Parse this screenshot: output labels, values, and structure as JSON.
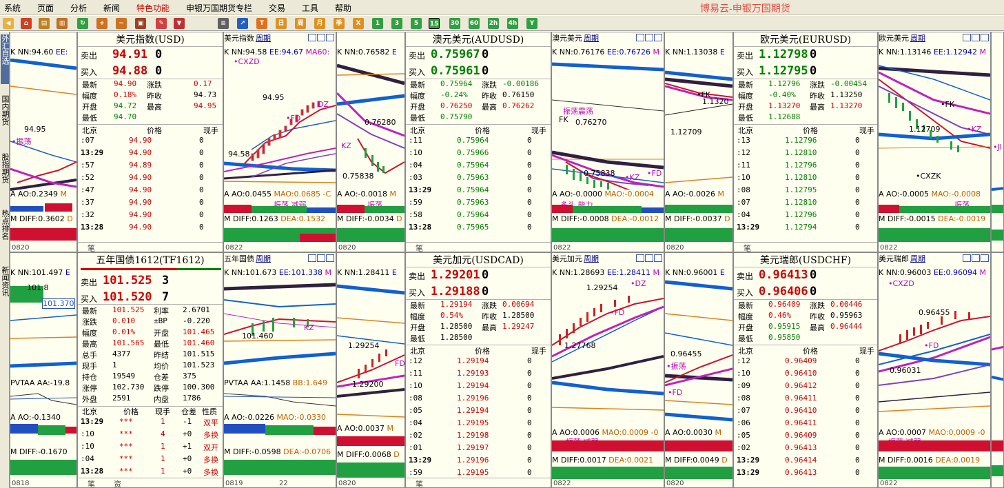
{
  "menu": [
    "系统",
    "页面",
    "分析",
    "新闻",
    "特色功能",
    "申银万国期货专栏",
    "交易",
    "工具",
    "帮助"
  ],
  "app_title": "博易云-申银万国期货",
  "toolbar": {
    "tf_1": "1",
    "tf_3": "3",
    "tf_5": "5",
    "tf_15": "15",
    "tf_30": "30",
    "tf_60": "60"
  },
  "side_tabs": [
    "外汇自选",
    "国内期货",
    "股指期货",
    "热点排名",
    "新闻资讯"
  ],
  "colors": {
    "up": "#d00000",
    "down": "#008000",
    "accent": "#e8463c"
  },
  "left1": {
    "k": "K",
    "nn": "NN:94.60",
    "ee": "EE:",
    "price": "94.95",
    "zd": "•振荡",
    "ao": "A AO:0.2349",
    "mao": "M",
    "diff": "M DIFF:0.3602",
    "dea": "D",
    "date": "0820"
  },
  "left2": {
    "k": "K",
    "nn": "NN:101.497",
    "ee": "E",
    "price": "101.8",
    "label": "101.370",
    "pvt": "PVTAA",
    "aa": "AA:-19.8",
    "ao": "A AO:-0.1340",
    "m": "M",
    "diff": "M DIFF:-0.1670",
    "d": "D",
    "date": "0818"
  },
  "usd": {
    "title": "美元指数(USD)",
    "sell_label": "卖出",
    "sell": "94.91",
    "sell_q": "0",
    "buy_label": "买入",
    "buy": "94.88",
    "buy_q": "0",
    "stats": [
      [
        "最新",
        "94.90",
        "涨跌",
        "0.17"
      ],
      [
        "幅度",
        "0.18%",
        "昨收",
        "94.73"
      ],
      [
        "开盘",
        "94.72",
        "最高",
        "94.95"
      ],
      [
        "最低",
        "94.70",
        "",
        ""
      ]
    ],
    "th": [
      "北京",
      "价格",
      "现手"
    ],
    "ticks": [
      [
        ":07",
        "94.90",
        "0"
      ],
      [
        "13:29",
        "94.90",
        "0"
      ],
      [
        ":57",
        "94.89",
        "0"
      ],
      [
        ":52",
        "94.90",
        "0"
      ],
      [
        ":47",
        "94.90",
        "0"
      ],
      [
        ":37",
        "94.90",
        "0"
      ],
      [
        ":32",
        "94.90",
        "0"
      ],
      [
        "13:28",
        "94.90",
        "0"
      ]
    ],
    "foot": "笔"
  },
  "usd_chart": {
    "name": "美元指数",
    "period": "周期",
    "k": "K",
    "nn": "NN:94.58",
    "ee": "EE:94.67",
    "ma": "MA60:",
    "cx": "•CXZD",
    "p1": "94.95",
    "dz": "DZ",
    "fd": "•FD",
    "p2": "94.58",
    "ao": "A AO:0.0455",
    "mao": "MAO:0.0685 -C",
    "zd": "振荡 减弱",
    "diff": "M DIFF:0.1263",
    "dea": "DEA:0.1532",
    "date": "0822"
  },
  "usd_chart2": {
    "k": "K",
    "nn": "NN:0.76582",
    "ee": "E",
    "kz": "KZ",
    "p1": "0.76280",
    "p2": "0.75838",
    "ao": "A AO:-0.0018",
    "m": "M",
    "diff": "M DIFF:-0.0034",
    "d": "D",
    "date": "0820",
    "zd": "振荡"
  },
  "aud": {
    "title": "澳元美元(AUDUSD)",
    "sell_label": "卖出",
    "sell": "0.75967",
    "sell_q": "0",
    "buy_label": "买入",
    "buy": "0.75961",
    "buy_q": "0",
    "stats": [
      [
        "最新",
        "0.75964",
        "涨跌",
        "-0.00186"
      ],
      [
        "幅度",
        "-0.24%",
        "昨收",
        "0.76150"
      ],
      [
        "开盘",
        "0.76250",
        "最高",
        "0.76262"
      ],
      [
        "最低",
        "0.75790",
        "",
        ""
      ]
    ],
    "th": [
      "北京",
      "价格",
      "现手"
    ],
    "ticks": [
      [
        ":11",
        "0.75964",
        "0"
      ],
      [
        ":10",
        "0.75966",
        "0"
      ],
      [
        ":04",
        "0.75964",
        "0"
      ],
      [
        ":03",
        "0.75963",
        "0"
      ],
      [
        "13:29",
        "0.75964",
        "0"
      ],
      [
        ":59",
        "0.75963",
        "0"
      ],
      [
        ":58",
        "0.75964",
        "0"
      ],
      [
        "13:28",
        "0.75965",
        "0"
      ]
    ],
    "foot": "笔"
  },
  "aud_chart": {
    "name": "澳元美元",
    "period": "周期",
    "k": "K",
    "nn": "NN:0.76176",
    "ee": "EE:0.76726",
    "m": "M",
    "zd": "振荡震荡",
    "fk": "FK",
    "p1": "0.76270",
    "p2": "0.75838",
    "kz": "•KZ",
    "fd": "•FD",
    "ao": "A AO:-0.0000",
    "mao": "MAO:-0.0004",
    "s": "多头 能力",
    "diff": "M DIFF:-0.0008",
    "dea": "DEA:-0.0012",
    "date": "0822"
  },
  "aud_chart2": {
    "k": "K",
    "nn": "NN:1.13038",
    "ee": "E",
    "fk": "•FK",
    "p1": "1.1320",
    "p2": "1.12709",
    "ao": "A AO:-0.0026",
    "m": "M",
    "diff": "M DIFF:-0.0037",
    "d": "D",
    "date": "0820"
  },
  "eur": {
    "title": "欧元美元(EURUSD)",
    "sell_label": "卖出",
    "sell": "1.12798",
    "sell_q": "0",
    "buy_label": "买入",
    "buy": "1.12795",
    "buy_q": "0",
    "stats": [
      [
        "最新",
        "1.12796",
        "涨跌",
        "-0.00454"
      ],
      [
        "幅度",
        "-0.40%",
        "昨收",
        "1.13250"
      ],
      [
        "开盘",
        "1.13270",
        "最高",
        "1.13270"
      ],
      [
        "最低",
        "1.12688",
        "",
        ""
      ]
    ],
    "th": [
      "北京",
      "价格",
      "现手"
    ],
    "ticks": [
      [
        ":13",
        "1.12796",
        "0"
      ],
      [
        ":12",
        "1.12810",
        "0"
      ],
      [
        ":11",
        "1.12796",
        "0"
      ],
      [
        ":10",
        "1.12810",
        "0"
      ],
      [
        ":08",
        "1.12795",
        "0"
      ],
      [
        ":07",
        "1.12810",
        "0"
      ],
      [
        ":04",
        "1.12796",
        "0"
      ],
      [
        "13:29",
        "1.12794",
        "0"
      ]
    ],
    "foot": "笔"
  },
  "eur_chart": {
    "name": "欧元美元",
    "period": "周期",
    "k": "K",
    "nn": "NN:1.13146",
    "ee": "EE:1.12942",
    "m": "M",
    "fk": "•FK",
    "p1": "1.12709",
    "kz": "•KZ",
    "jd": "•JI",
    "cx": "•CXZK",
    "ao": "A AO:-0.0005",
    "mao": "MAO:-0.0008",
    "s": "振荡",
    "diff": "M DIFF:-0.0015",
    "dea": "DEA:-0.0019",
    "date": "0822"
  },
  "tf": {
    "title": "五年国债1612(TF1612)",
    "sell_label": "卖出",
    "sell": "101.525",
    "sell_q": "3",
    "buy_label": "买入",
    "buy": "101.520",
    "buy_q": "7",
    "stats": [
      [
        "最新",
        "101.525",
        "利率",
        "2.6701"
      ],
      [
        "涨跌",
        "0.010",
        "±BP",
        "-0.220"
      ],
      [
        "幅度",
        "0.01%",
        "开盘",
        "101.465"
      ],
      [
        "最高",
        "101.565",
        "最低",
        "101.460"
      ],
      [
        "总手",
        "4377",
        "昨结",
        "101.515"
      ],
      [
        "现手",
        "1",
        "均价",
        "101.523"
      ],
      [
        "持仓",
        "19549",
        "仓差",
        "375"
      ],
      [
        "涨停",
        "102.730",
        "跌停",
        "100.300"
      ],
      [
        "外盘",
        "2591",
        "内盘",
        "1786"
      ]
    ],
    "th": [
      "北京",
      "价格",
      "现手",
      "仓差",
      "性质"
    ],
    "ticks": [
      [
        "13:29",
        "***",
        "1",
        "-1",
        "双平"
      ],
      [
        ":10",
        "***",
        "4",
        "+0",
        "多换"
      ],
      [
        ":10",
        "***",
        "1",
        "+1",
        "双开"
      ],
      [
        ":04",
        "***",
        "1",
        "+0",
        "多换"
      ],
      [
        "13:28",
        "***",
        "1",
        "+0",
        "多换"
      ]
    ],
    "foot1": "笔",
    "foot2": "资"
  },
  "tf_chart": {
    "name": "五年国债",
    "period": "周期",
    "k": "K",
    "nn": "NN:101.673",
    "ee": "EE:101.338",
    "m": "M",
    "p1": "101.460",
    "kz": "KZ",
    "pvt": "PVTAA",
    "aa": "AA:1.1458",
    "bb": "BB:1.649",
    "ao": "A AO:-0.0226",
    "mao": "MAO:-0.0330",
    "diff": "M DIFF:-0.0598",
    "dea": "DEA:-0.0706",
    "date1": "0819",
    "date2": "22"
  },
  "tf_chart2": {
    "k": "K",
    "nn": "NN:1.28411",
    "ee": "E",
    "p1": "1.29254",
    "fd": "FD",
    "p2": "1.29200",
    "ao": "A AO:0.0037",
    "m": "M",
    "diff": "M DIFF:0.0068",
    "d": "D",
    "date": "0820"
  },
  "cad": {
    "title": "美元加元(USDCAD)",
    "sell_label": "卖出",
    "sell": "1.29201",
    "sell_q": "0",
    "buy_label": "买入",
    "buy": "1.29188",
    "buy_q": "0",
    "stats": [
      [
        "最新",
        "1.29194",
        "涨跌",
        "0.00694"
      ],
      [
        "幅度",
        "0.54%",
        "昨收",
        "1.28500"
      ],
      [
        "开盘",
        "1.28500",
        "最高",
        "1.29247"
      ],
      [
        "最低",
        "1.28500",
        "",
        ""
      ]
    ],
    "th": [
      "北京",
      "价格",
      "现手"
    ],
    "ticks": [
      [
        ":12",
        "1.29194",
        "0"
      ],
      [
        ":11",
        "1.29193",
        "0"
      ],
      [
        ":10",
        "1.29194",
        "0"
      ],
      [
        ":08",
        "1.29196",
        "0"
      ],
      [
        ":05",
        "1.29194",
        "0"
      ],
      [
        ":04",
        "1.29195",
        "0"
      ],
      [
        ":02",
        "1.29198",
        "0"
      ],
      [
        ":01",
        "1.29197",
        "0"
      ],
      [
        "13:29",
        "1.29196",
        "0"
      ],
      [
        ":59",
        "1.29195",
        "0"
      ]
    ],
    "foot": "笔"
  },
  "cad_chart": {
    "name": "美元加元",
    "period": "周期",
    "k": "K",
    "nn": "NN:1.28693",
    "ee": "EE:1.28411",
    "m": "M",
    "p1": "1.29254",
    "dz": "•DZ",
    "fd": "•FD",
    "p2": "1.27768",
    "ao": "A AO:0.0006",
    "mao": "MAO:0.0009 -0",
    "s": "振荡 减弱",
    "diff": "M DIFF:0.0017",
    "dea": "DEA:0.0021",
    "date": "0822"
  },
  "cad_chart2": {
    "k": "K",
    "nn": "NN:0.96001",
    "ee": "E",
    "p1": "0.96455",
    "zd": "•振荡",
    "fd": "•FD",
    "ao": "A AO:0.0030",
    "m": "M",
    "diff": "M DIFF:0.0049",
    "d": "D",
    "date": "0820"
  },
  "chf": {
    "title": "美元瑞郎(USDCHF)",
    "sell_label": "卖出",
    "sell": "0.96413",
    "sell_q": "0",
    "buy_label": "买入",
    "buy": "0.96406",
    "buy_q": "0",
    "stats": [
      [
        "最新",
        "0.96409",
        "涨跌",
        "0.00446"
      ],
      [
        "幅度",
        "0.46%",
        "昨收",
        "0.95963"
      ],
      [
        "开盘",
        "0.95915",
        "最高",
        "0.96444"
      ],
      [
        "最低",
        "0.95850",
        "",
        ""
      ]
    ],
    "th": [
      "北京",
      "价格",
      "现手"
    ],
    "ticks": [
      [
        ":12",
        "0.96409",
        "0"
      ],
      [
        ":10",
        "0.96410",
        "0"
      ],
      [
        ":09",
        "0.96412",
        "0"
      ],
      [
        ":08",
        "0.96411",
        "0"
      ],
      [
        ":07",
        "0.96410",
        "0"
      ],
      [
        ":06",
        "0.96411",
        "0"
      ],
      [
        ":05",
        "0.96409",
        "0"
      ],
      [
        ":02",
        "0.96413",
        "0"
      ],
      [
        "13:29",
        "0.96414",
        "0"
      ],
      [
        "13:29",
        "0.96413",
        "0"
      ]
    ],
    "foot": "笔"
  },
  "chf_chart": {
    "name": "美元瑞郎",
    "period": "周期",
    "k": "K",
    "nn": "NN:0.96003",
    "ee": "EE:0.96094",
    "m": "M",
    "cx": "•CXZD",
    "p1": "0.96455",
    "fd": "•FD",
    "p2": "0.96031",
    "ao": "A AO:0.0007",
    "mao": "MAO:0.0009 -0",
    "s": "振荡 减弱",
    "diff": "M DIFF:0.0016",
    "dea": "DEA:0.0019",
    "date": "0822"
  }
}
